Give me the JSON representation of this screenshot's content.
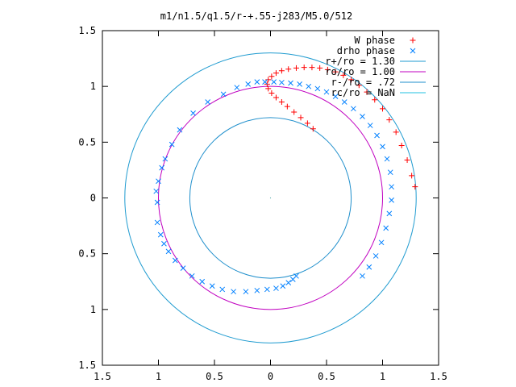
{
  "chart_data": {
    "type": "scatter",
    "title": "m1/n1.5/q1.5/r-+.55-j283/M5.0/512",
    "xlim": [
      -1.5,
      1.5
    ],
    "ylim": [
      -1.5,
      1.5
    ],
    "xticks": [
      -1.5,
      -1,
      -0.5,
      0,
      0.5,
      1,
      1.5
    ],
    "xtick_labels": [
      "1.5",
      "1",
      "0.5",
      "0",
      "0.5",
      "1",
      "1.5"
    ],
    "yticks": [
      1.5,
      1,
      0.5,
      0,
      -0.5,
      -1,
      -1.5
    ],
    "ytick_labels": [
      "1.5",
      "1",
      "0.5",
      "0",
      "0.5",
      "1",
      "1.5"
    ],
    "grid": false,
    "legend_position": "top-right",
    "legend": [
      {
        "label": "W phase",
        "marker": "+",
        "color": "#ff0000"
      },
      {
        "label": "drho phase",
        "marker": "x",
        "color": "#0080ff"
      },
      {
        "label": "r+/ro = 1.30",
        "marker": "line",
        "color": "#1f9bd0"
      },
      {
        "label": "ro/ro = 1.00",
        "marker": "line",
        "color": "#c000c0"
      },
      {
        "label": "r-/ro = .72",
        "marker": "line",
        "color": "#1f8fcc"
      },
      {
        "label": "rc/ro = NaN",
        "marker": "line",
        "color": "#20c0e0"
      }
    ],
    "circles": [
      {
        "name": "r+/ro",
        "r": 1.3,
        "color": "#1f9bd0"
      },
      {
        "name": "ro/ro",
        "r": 1.0,
        "color": "#c000c0"
      },
      {
        "name": "r-/ro",
        "r": 0.72,
        "color": "#1f8fcc"
      }
    ],
    "series": [
      {
        "name": "W phase",
        "marker": "+",
        "color": "#ff0000",
        "points": [
          [
            0.38,
            0.62
          ],
          [
            0.33,
            0.67
          ],
          [
            0.27,
            0.72
          ],
          [
            0.21,
            0.77
          ],
          [
            0.15,
            0.82
          ],
          [
            0.1,
            0.86
          ],
          [
            0.05,
            0.9
          ],
          [
            0.01,
            0.94
          ],
          [
            -0.02,
            0.98
          ],
          [
            -0.03,
            1.02
          ],
          [
            -0.02,
            1.06
          ],
          [
            0.01,
            1.09
          ],
          [
            0.05,
            1.12
          ],
          [
            0.1,
            1.14
          ],
          [
            0.16,
            1.155
          ],
          [
            0.23,
            1.165
          ],
          [
            0.3,
            1.17
          ],
          [
            0.37,
            1.17
          ],
          [
            0.44,
            1.165
          ],
          [
            0.51,
            1.15
          ],
          [
            0.58,
            1.13
          ],
          [
            0.65,
            1.1
          ],
          [
            0.72,
            1.06
          ],
          [
            0.79,
            1.01
          ],
          [
            0.86,
            0.95
          ],
          [
            0.93,
            0.88
          ],
          [
            1.0,
            0.8
          ],
          [
            1.06,
            0.7
          ],
          [
            1.12,
            0.59
          ],
          [
            1.17,
            0.47
          ],
          [
            1.22,
            0.34
          ],
          [
            1.26,
            0.2
          ],
          [
            1.29,
            0.1
          ]
        ]
      },
      {
        "name": "drho phase",
        "marker": "x",
        "color": "#0080ff",
        "points": [
          [
            -1.02,
            0.06
          ],
          [
            -1.01,
            -0.04
          ],
          [
            -1.0,
            0.15
          ],
          [
            -0.97,
            0.27
          ],
          [
            -0.94,
            0.35
          ],
          [
            -0.88,
            0.48
          ],
          [
            -0.81,
            0.61
          ],
          [
            -0.69,
            0.76
          ],
          [
            -0.56,
            0.86
          ],
          [
            -0.42,
            0.93
          ],
          [
            -0.3,
            0.99
          ],
          [
            -0.2,
            1.02
          ],
          [
            -0.12,
            1.04
          ],
          [
            -0.05,
            1.04
          ],
          [
            0.03,
            1.04
          ],
          [
            0.1,
            1.035
          ],
          [
            0.18,
            1.03
          ],
          [
            0.26,
            1.02
          ],
          [
            0.34,
            1.0
          ],
          [
            0.42,
            0.98
          ],
          [
            0.5,
            0.95
          ],
          [
            0.58,
            0.91
          ],
          [
            0.66,
            0.86
          ],
          [
            0.74,
            0.8
          ],
          [
            0.82,
            0.73
          ],
          [
            0.89,
            0.65
          ],
          [
            0.95,
            0.56
          ],
          [
            1.0,
            0.46
          ],
          [
            1.04,
            0.35
          ],
          [
            1.07,
            0.23
          ],
          [
            1.08,
            0.1
          ],
          [
            1.08,
            -0.02
          ],
          [
            1.06,
            -0.14
          ],
          [
            1.03,
            -0.27
          ],
          [
            0.99,
            -0.4
          ],
          [
            0.94,
            -0.52
          ],
          [
            0.88,
            -0.62
          ],
          [
            0.82,
            -0.7
          ],
          [
            -1.01,
            -0.22
          ],
          [
            -0.98,
            -0.33
          ],
          [
            -0.95,
            -0.41
          ],
          [
            -0.91,
            -0.48
          ],
          [
            -0.85,
            -0.56
          ],
          [
            -0.78,
            -0.63
          ],
          [
            -0.7,
            -0.7
          ],
          [
            -0.61,
            -0.75
          ],
          [
            -0.52,
            -0.79
          ],
          [
            -0.43,
            -0.82
          ],
          [
            -0.33,
            -0.84
          ],
          [
            -0.22,
            -0.84
          ],
          [
            -0.12,
            -0.83
          ],
          [
            -0.03,
            -0.82
          ],
          [
            0.05,
            -0.81
          ],
          [
            0.11,
            -0.79
          ],
          [
            0.16,
            -0.76
          ],
          [
            0.2,
            -0.73
          ],
          [
            0.23,
            -0.7
          ]
        ]
      }
    ]
  }
}
